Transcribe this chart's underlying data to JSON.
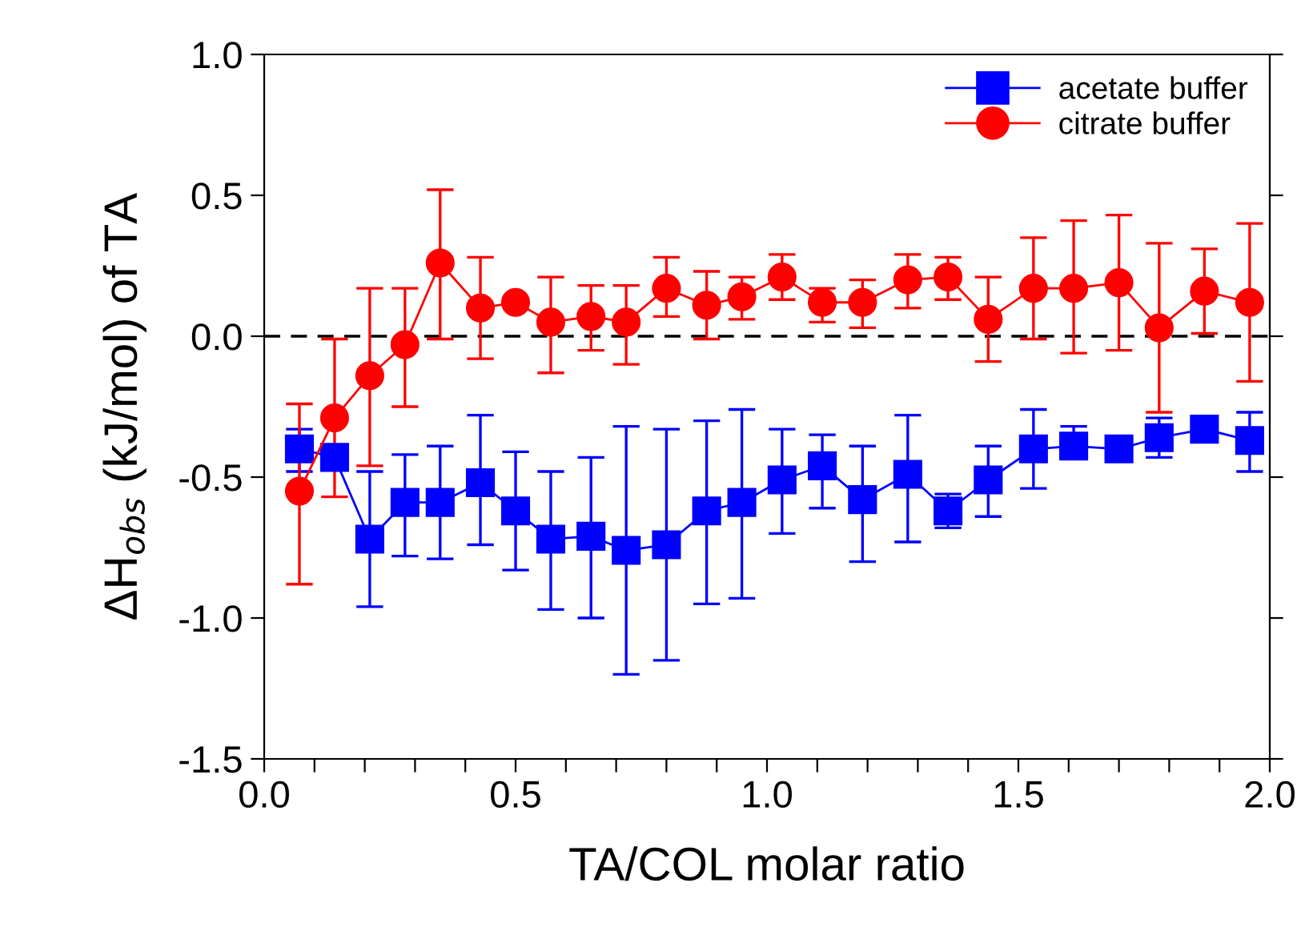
{
  "chart_data": {
    "type": "line",
    "xlabel": "TA/COL molar ratio",
    "ylabel": "ΔH$_{obs}$ (kJ/mol) of TA",
    "xlim": [
      0,
      2
    ],
    "ylim": [
      -1.5,
      1.0
    ],
    "xticks": [
      {
        "value": 0,
        "label": "0.0"
      },
      {
        "value": 0.1,
        "label": null
      },
      {
        "value": 0.2,
        "label": null
      },
      {
        "value": 0.3,
        "label": null
      },
      {
        "value": 0.4,
        "label": null
      },
      {
        "value": 0.5,
        "label": "0.5"
      },
      {
        "value": 0.6,
        "label": null
      },
      {
        "value": 0.7,
        "label": null
      },
      {
        "value": 0.8,
        "label": null
      },
      {
        "value": 0.9,
        "label": null
      },
      {
        "value": 1.0,
        "label": "1.0"
      },
      {
        "value": 1.1,
        "label": null
      },
      {
        "value": 1.2,
        "label": null
      },
      {
        "value": 1.3,
        "label": null
      },
      {
        "value": 1.4,
        "label": null
      },
      {
        "value": 1.5,
        "label": "1.5"
      },
      {
        "value": 1.6,
        "label": null
      },
      {
        "value": 1.7,
        "label": null
      },
      {
        "value": 1.8,
        "label": null
      },
      {
        "value": 1.9,
        "label": null
      },
      {
        "value": 2.0,
        "label": "2.0"
      }
    ],
    "yticks": [
      {
        "value": -1.5,
        "label": "-1.5"
      },
      {
        "value": -1.0,
        "label": "-1.0"
      },
      {
        "value": -0.5,
        "label": "-0.5"
      },
      {
        "value": 0,
        "label": "0.0"
      },
      {
        "value": 0.5,
        "label": "0.5"
      },
      {
        "value": 1.0,
        "label": "1.0"
      }
    ],
    "x": [
      0.07,
      0.14,
      0.21,
      0.28,
      0.35,
      0.43,
      0.5,
      0.57,
      0.65,
      0.72,
      0.8,
      0.88,
      0.95,
      1.03,
      1.11,
      1.19,
      1.28,
      1.36,
      1.44,
      1.53,
      1.61,
      1.7,
      1.78,
      1.87,
      1.96
    ],
    "grid": false,
    "legend": "top right",
    "ref_lines": [
      {
        "axis": "y",
        "value": 0,
        "color": "#000000",
        "line_style": "dashed"
      }
    ],
    "series": [
      {
        "name": "acetate buffer",
        "color": "#0000ff",
        "marker": "square",
        "values": [
          -0.4,
          -0.43,
          -0.72,
          -0.59,
          -0.59,
          -0.52,
          -0.62,
          -0.72,
          -0.71,
          -0.76,
          -0.74,
          -0.62,
          -0.59,
          -0.51,
          -0.46,
          -0.58,
          -0.49,
          -0.62,
          -0.51,
          -0.4,
          -0.39,
          -0.4,
          -0.36,
          -0.33,
          -0.37
        ],
        "errors": [
          [
            -0.48,
            -0.33
          ],
          null,
          [
            -0.96,
            -0.48
          ],
          [
            -0.78,
            -0.42
          ],
          [
            -0.79,
            -0.39
          ],
          [
            -0.74,
            -0.28
          ],
          [
            -0.83,
            -0.41
          ],
          [
            -0.97,
            -0.48
          ],
          [
            -1.0,
            -0.43
          ],
          [
            -1.2,
            -0.32
          ],
          [
            -1.15,
            -0.33
          ],
          [
            -0.95,
            -0.3
          ],
          [
            -0.93,
            -0.26
          ],
          [
            -0.7,
            -0.33
          ],
          [
            -0.61,
            -0.35
          ],
          [
            -0.8,
            -0.39
          ],
          [
            -0.73,
            -0.28
          ],
          [
            -0.68,
            -0.56
          ],
          [
            -0.64,
            -0.39
          ],
          [
            -0.54,
            -0.26
          ],
          [
            -0.39,
            -0.32
          ],
          null,
          [
            -0.43,
            -0.29
          ],
          null,
          [
            -0.48,
            -0.27
          ]
        ]
      },
      {
        "name": "citrate buffer",
        "color": "#ff0000",
        "marker": "circle",
        "values": [
          -0.55,
          -0.29,
          -0.14,
          -0.03,
          0.26,
          0.1,
          0.12,
          0.05,
          0.07,
          0.05,
          0.17,
          0.11,
          0.14,
          0.21,
          0.12,
          0.12,
          0.2,
          0.21,
          0.06,
          0.17,
          0.17,
          0.19,
          0.03,
          0.16,
          0.12
        ],
        "errors": [
          [
            -0.88,
            -0.24
          ],
          [
            -0.57,
            -0.01
          ],
          [
            -0.46,
            0.17
          ],
          [
            -0.25,
            0.17
          ],
          [
            -0.01,
            0.52
          ],
          [
            -0.08,
            0.28
          ],
          null,
          [
            -0.13,
            0.21
          ],
          [
            -0.05,
            0.18
          ],
          [
            -0.1,
            0.18
          ],
          [
            0.07,
            0.28
          ],
          [
            -0.01,
            0.23
          ],
          [
            0.06,
            0.21
          ],
          [
            0.13,
            0.29
          ],
          [
            0.05,
            0.17
          ],
          [
            0.03,
            0.2
          ],
          [
            0.1,
            0.29
          ],
          [
            0.13,
            0.28
          ],
          [
            -0.09,
            0.21
          ],
          [
            -0.01,
            0.35
          ],
          [
            -0.06,
            0.41
          ],
          [
            -0.05,
            0.43
          ],
          [
            -0.27,
            0.33
          ],
          [
            0.01,
            0.31
          ],
          [
            -0.16,
            0.4
          ]
        ]
      }
    ]
  }
}
